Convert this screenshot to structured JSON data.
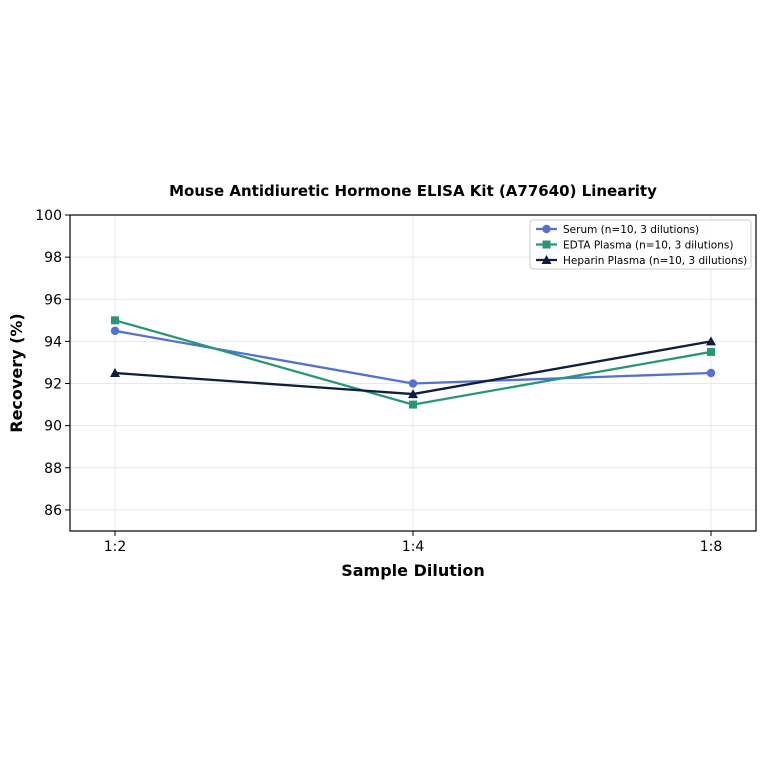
{
  "chart_data": {
    "type": "line",
    "title": "Mouse Antidiuretic Hormone ELISA Kit (A77640) Linearity",
    "xlabel": "Sample Dilution",
    "ylabel": "Recovery (%)",
    "categories": [
      "1:2",
      "1:4",
      "1:8"
    ],
    "ylim": [
      85,
      100
    ],
    "yticks": [
      86,
      88,
      90,
      92,
      94,
      96,
      98,
      100
    ],
    "grid": true,
    "legend_position": "top-right",
    "series": [
      {
        "name": "Serum (n=10, 3 dilutions)",
        "values": [
          94.5,
          92.0,
          92.5
        ],
        "color": "#5470d0",
        "marker": "circle"
      },
      {
        "name": "EDTA Plasma (n=10, 3 dilutions)",
        "values": [
          95.0,
          91.0,
          93.5
        ],
        "color": "#2a9678",
        "marker": "square"
      },
      {
        "name": "Heparin Plasma (n=10, 3 dilutions)",
        "values": [
          92.5,
          91.5,
          94.0
        ],
        "color": "#0f1d3f",
        "marker": "triangle"
      }
    ]
  }
}
